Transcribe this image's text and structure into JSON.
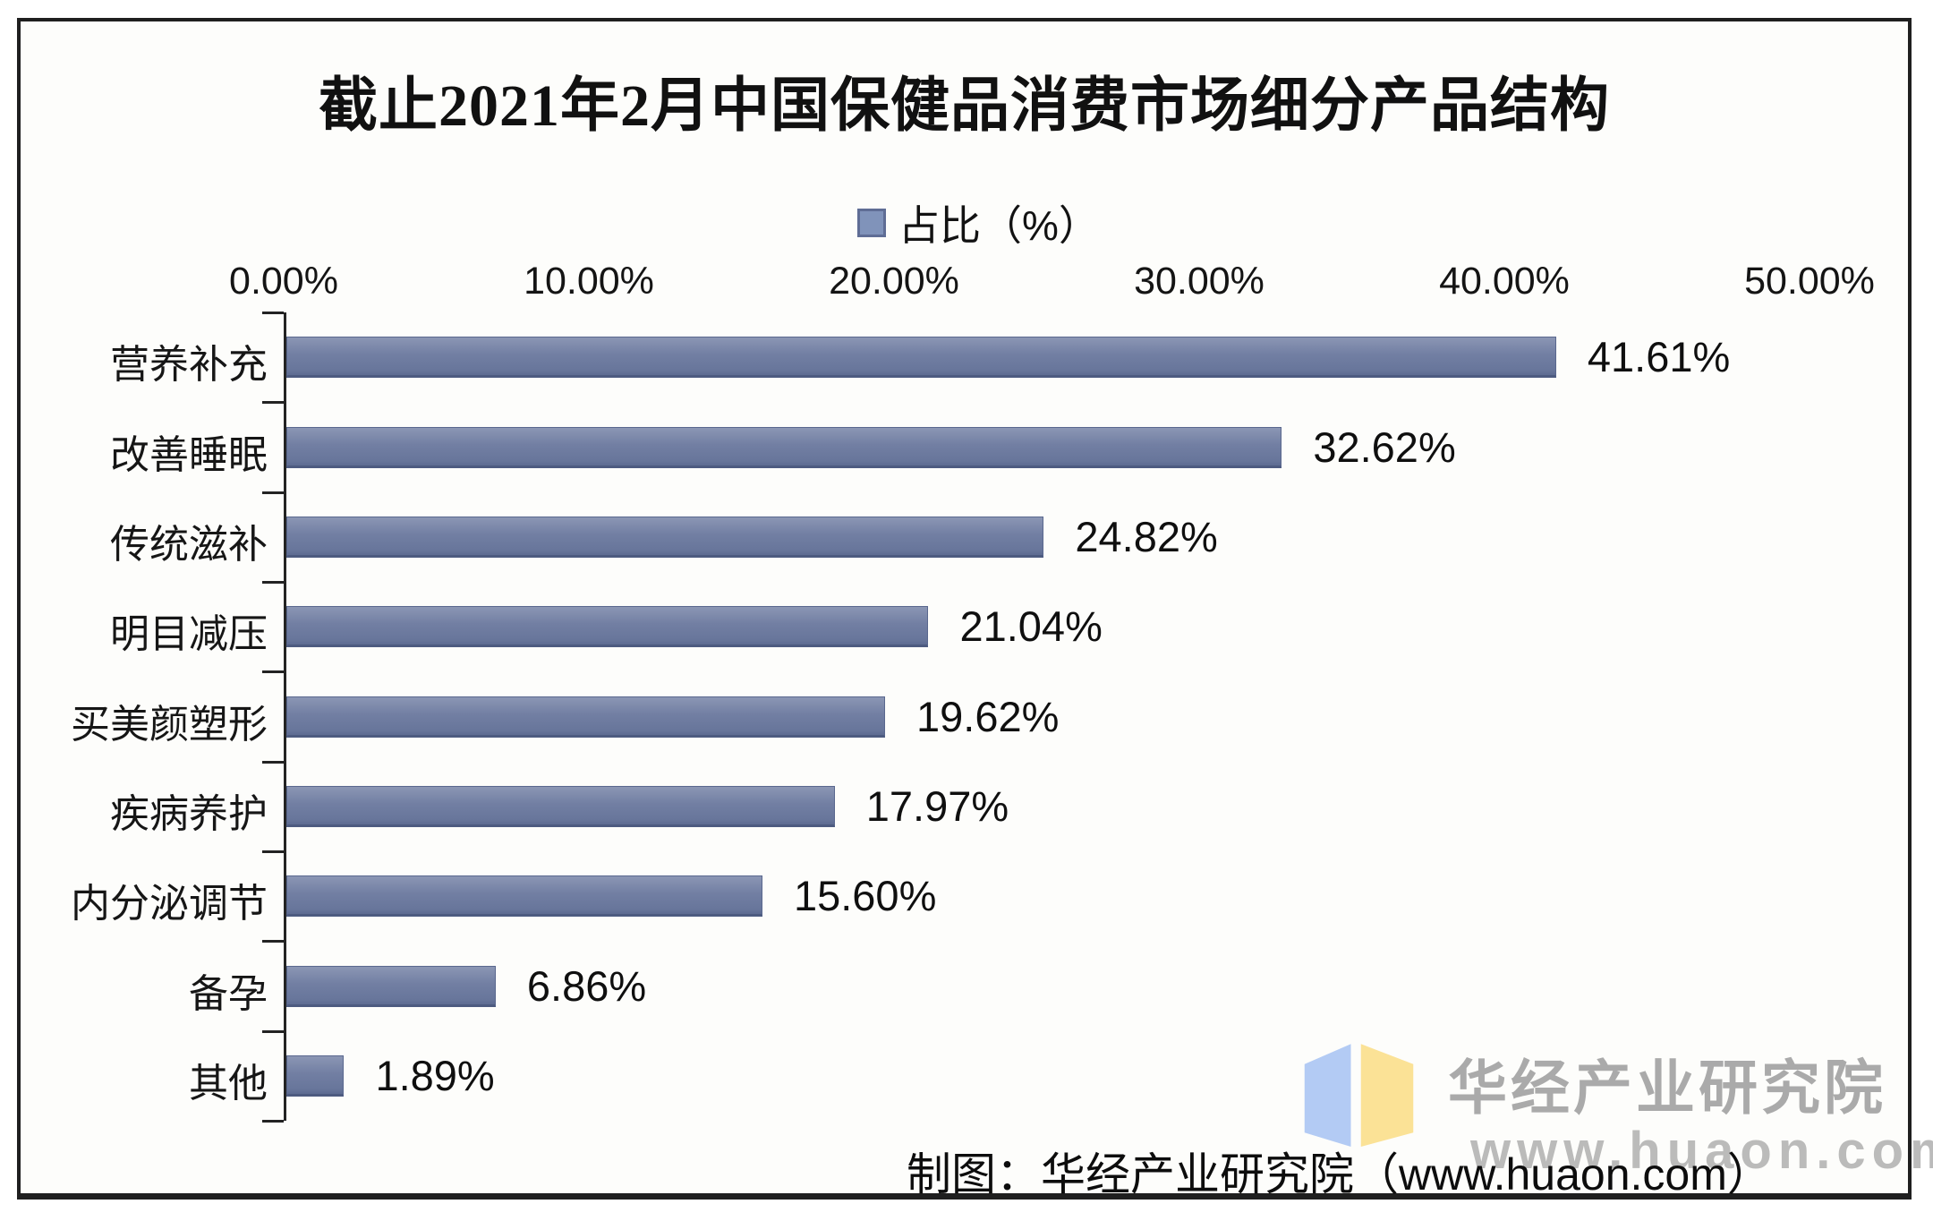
{
  "title": "截止2021年2月中国保健品消费市场细分产品结构",
  "legend": {
    "label": "占比（%）",
    "swatch_color": "#8093ba"
  },
  "chart_data": {
    "type": "bar",
    "orientation": "horizontal",
    "title": "截止2021年2月中国保健品消费市场细分产品结构",
    "series_name": "占比（%）",
    "categories": [
      "营养补充",
      "改善睡眠",
      "传统滋补",
      "明目减压",
      "买美颜塑形",
      "疾病养护",
      "内分泌调节",
      "备孕",
      "其他"
    ],
    "values": [
      41.61,
      32.62,
      24.82,
      21.04,
      19.62,
      17.97,
      15.6,
      6.86,
      1.89
    ],
    "value_labels": [
      "41.61%",
      "32.62%",
      "24.82%",
      "21.04%",
      "19.62%",
      "17.97%",
      "15.60%",
      "6.86%",
      "1.89%"
    ],
    "xlim": [
      0,
      50
    ],
    "x_tick_labels": [
      "0.00%",
      "10.00%",
      "20.00%",
      "30.00%",
      "40.00%",
      "50.00%"
    ],
    "value_axis_position": "top",
    "grid": false,
    "legend_position": "top",
    "bar_color": "#6f7d9f"
  },
  "footer": {
    "caption": "制图：华经产业研究院（www.huaon.com）"
  },
  "watermark": {
    "org_name": "华经产业研究院",
    "url": "www.huaon.com",
    "book_left_color": "#b3cbf4",
    "book_right_color": "#fbe296"
  }
}
